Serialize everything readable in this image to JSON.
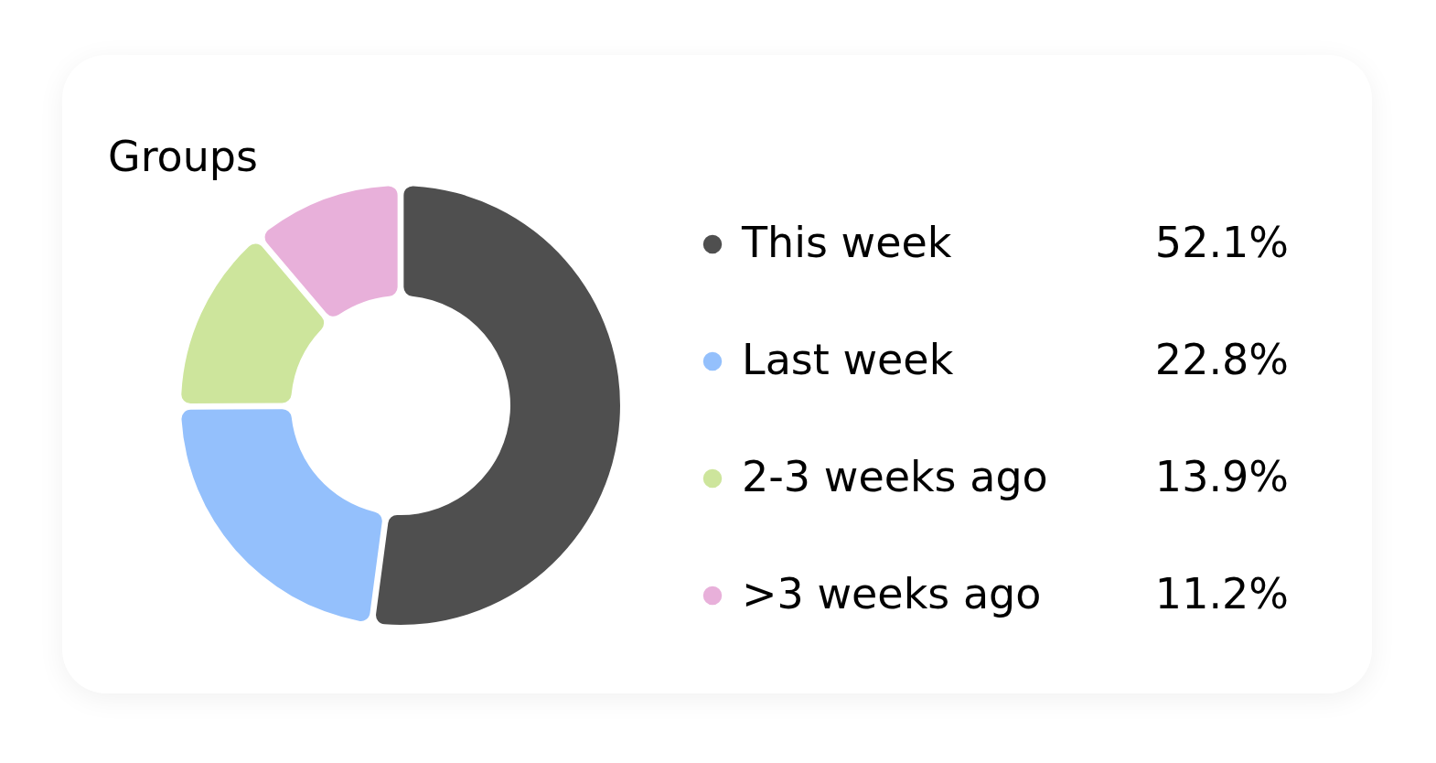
{
  "chart_data": {
    "type": "donut",
    "title": "Groups",
    "categories": [
      "This week",
      "Last week",
      "2-3 weeks ago",
      ">3 weeks ago"
    ],
    "values": [
      52.1,
      22.8,
      13.9,
      11.2
    ],
    "value_labels": [
      "52.1%",
      "22.8%",
      "13.9%",
      "11.2%"
    ],
    "colors": [
      "#4f4f4f",
      "#94c0fc",
      "#cde59c",
      "#e8b0da"
    ],
    "legend": "right"
  }
}
